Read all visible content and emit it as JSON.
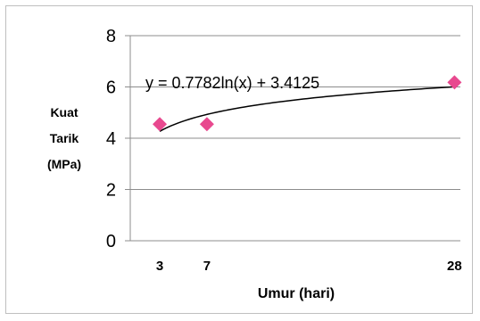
{
  "chart_data": {
    "type": "scatter",
    "title": "",
    "xlabel": "Umur (hari)",
    "ylabel_lines": [
      "Kuat",
      "Tarik",
      "(MPa)"
    ],
    "x": [
      3,
      7,
      28
    ],
    "y": [
      4.55,
      4.55,
      6.18
    ],
    "x_ticks": [
      "3",
      "7",
      "28"
    ],
    "y_ticks": [
      "0",
      "2",
      "4",
      "6",
      "8"
    ],
    "ylim": [
      0,
      8
    ],
    "grid": true,
    "legend": "none",
    "marker_color": "#e8498f",
    "trendline": {
      "type": "logarithmic",
      "equation": "y = 0.7782ln(x) + 3.4125",
      "a": 0.7782,
      "b": 3.4125,
      "color": "#000000"
    }
  }
}
